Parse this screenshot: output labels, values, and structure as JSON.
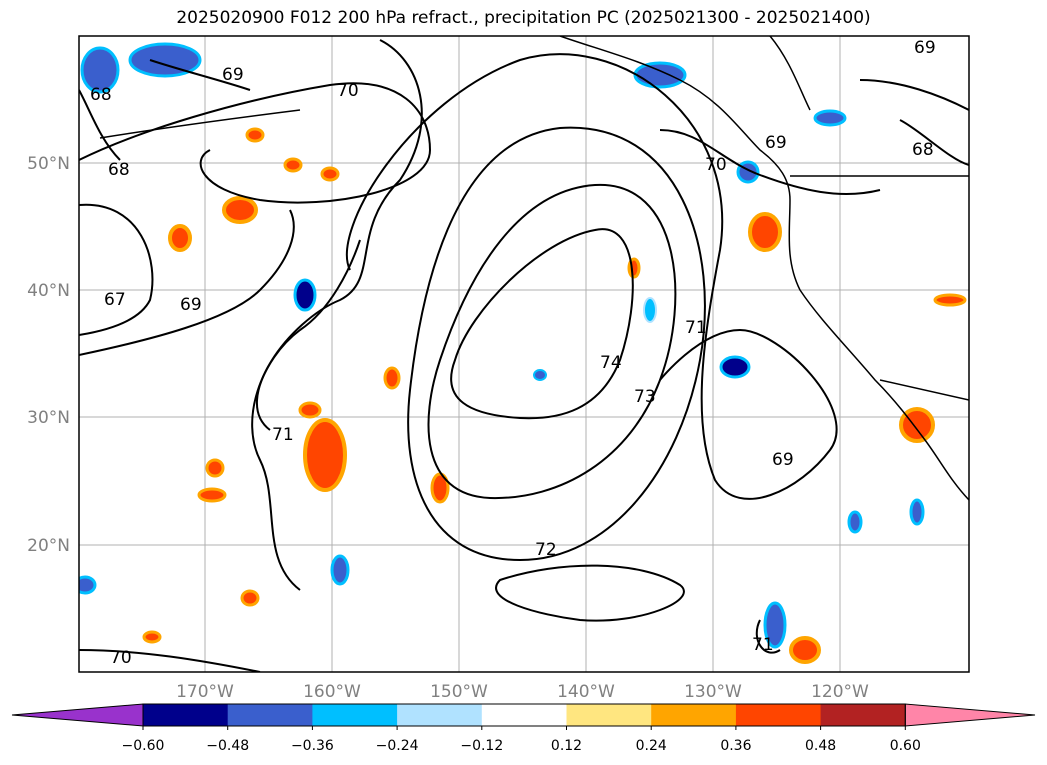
{
  "title": "2025020900 F012 200 hPa refract., precipitation PC (2025021300 - 2025021400)",
  "map": {
    "lat_labels": [
      "50°N",
      "40°N",
      "30°N",
      "20°N"
    ],
    "lon_labels": [
      "170°W",
      "160°W",
      "150°W",
      "140°W",
      "130°W",
      "120°W"
    ],
    "contour_labels": [
      "69",
      "70",
      "68",
      "68",
      "67",
      "69",
      "70",
      "69",
      "71",
      "74",
      "73",
      "71",
      "69",
      "72",
      "71",
      "70",
      "68",
      "69"
    ]
  },
  "colorbar": {
    "ticks": [
      "−0.60",
      "−0.48",
      "−0.36",
      "−0.24",
      "−0.12",
      "0.12",
      "0.24",
      "0.36",
      "0.48",
      "0.60"
    ],
    "colors": [
      "#9932cc",
      "#00008b",
      "#3a5fcd",
      "#00bfff",
      "#b0e2ff",
      "#ffffff",
      "#ffe680",
      "#ffa500",
      "#ff4500",
      "#b22222",
      "#ff85a8"
    ]
  }
}
